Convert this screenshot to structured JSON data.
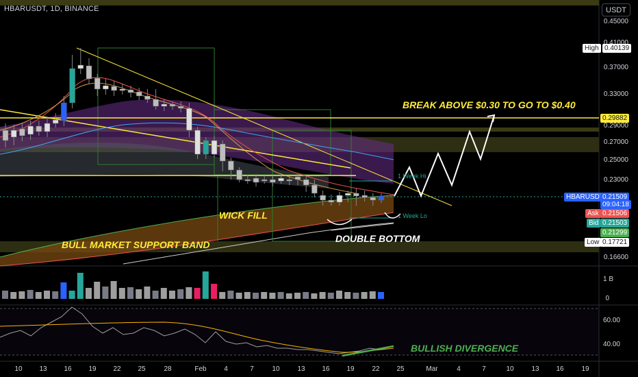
{
  "header": {
    "symbol_title": "HBARUSDT, 1D, BINANCE",
    "currency_button": "USDT"
  },
  "price_axis": {
    "ticks": [
      "0.45000",
      "0.41000",
      "0.37000",
      "0.33000",
      "0.29000",
      "0.27000",
      "0.25000",
      "0.23000",
      "0.16600"
    ]
  },
  "price_tags": {
    "high_label": "High",
    "high_value": "0.40139",
    "level_value": "0.29882",
    "symbol_name": "HBARUSDT",
    "last_price": "0.21509",
    "countdown": "09:04:18",
    "ask_label": "Ask",
    "ask_value": "0.21506",
    "bid_label": "Bid",
    "bid_value": "0.21503",
    "other_value": "0.21299",
    "low_label": "Low",
    "low_value": "0.17721"
  },
  "volume_axis": {
    "top": "1 B",
    "bottom": "0"
  },
  "rsi_axis": {
    "upper": "60.00",
    "lower": "40.00"
  },
  "time_axis": [
    "10",
    "13",
    "16",
    "19",
    "22",
    "25",
    "28",
    "Feb",
    "4",
    "7",
    "10",
    "13",
    "16",
    "19",
    "22",
    "25",
    "Mar",
    "4",
    "7",
    "10",
    "13",
    "16",
    "19"
  ],
  "annotations": {
    "breakout": "BREAK ABOVE $0.30 TO GO TO $0.40",
    "wick_fill": "WICK FILL",
    "support_band": "BULL MARKET SUPPORT BAND",
    "double_bottom": "DOUBLE BOTTOM",
    "divergence": "BULLISH DIVERGENCE",
    "week_hi": "1 Week Hi",
    "week_lo": "1 Week Lo"
  },
  "colors": {
    "up": "#26a69a",
    "down": "#ef5350",
    "annotation_yellow": "#ffeb3b",
    "annotation_white": "#ffffff",
    "annotation_green": "#4caf50",
    "last_price_blue": "#2962ff"
  }
}
